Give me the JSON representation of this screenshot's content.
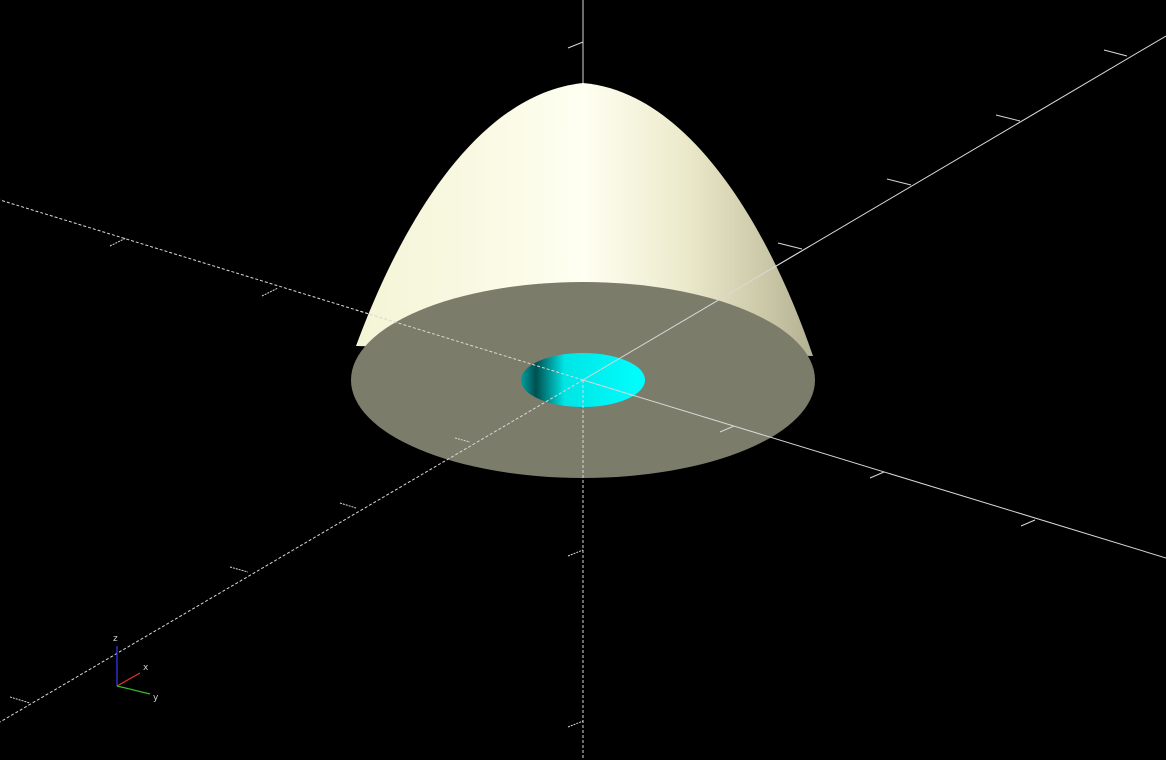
{
  "viewport": {
    "background": "#000000",
    "axes_shown": true,
    "ticks_shown": true,
    "positive_axis_style": "solid",
    "negative_axis_style": "dashed"
  },
  "model": {
    "shape": "paraboloid",
    "hole_shape": "cylinder",
    "colors": {
      "surface_light": "#fffff0",
      "surface_mid": "#f5f5d8",
      "surface_shadow": "#b9b89a",
      "base_face": "#7b7c6a",
      "hole_inner": "#00ffff",
      "hole_shade": "#006b6b"
    }
  },
  "axis_indicator": {
    "x_label": "x",
    "y_label": "y",
    "z_label": "z",
    "x_color": "#e83030",
    "y_color": "#2fbf2f",
    "z_color": "#3a3aff",
    "label_color": "#d0d0d0"
  }
}
